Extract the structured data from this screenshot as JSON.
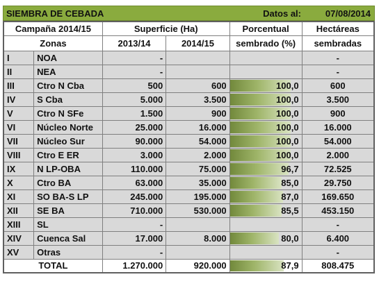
{
  "title": "SIEMBRA DE CEBADA",
  "datos_label": "Datos al:",
  "date": "07/08/2014",
  "header": {
    "campaign": "Campaña 2014/15",
    "surface": "Superficie (Ha)",
    "percent_l1": "Porcentual",
    "percent_l2": "sembrado (%)",
    "hect_l1": "Hectáreas",
    "hect_l2": "sembradas",
    "zones": "Zonas",
    "y1": "2013/14",
    "y2": "2014/15"
  },
  "rows": [
    {
      "num": "I",
      "zone": "NOA",
      "prev": "-",
      "cur": "",
      "pct": "",
      "pct_value": 0,
      "hec": "-"
    },
    {
      "num": "II",
      "zone": "NEA",
      "prev": "-",
      "cur": "",
      "pct": "",
      "pct_value": 0,
      "hec": "-"
    },
    {
      "num": "III",
      "zone": "Ctro N Cba",
      "prev": "500",
      "cur": "600",
      "pct": "100,0",
      "pct_value": 100,
      "hec": "600"
    },
    {
      "num": "IV",
      "zone": "S Cba",
      "prev": "5.000",
      "cur": "3.500",
      "pct": "100,0",
      "pct_value": 100,
      "hec": "3.500"
    },
    {
      "num": "V",
      "zone": "Ctro N SFe",
      "prev": "1.500",
      "cur": "900",
      "pct": "100,0",
      "pct_value": 100,
      "hec": "900"
    },
    {
      "num": "VI",
      "zone": "Núcleo Norte",
      "prev": "25.000",
      "cur": "16.000",
      "pct": "100,0",
      "pct_value": 100,
      "hec": "16.000"
    },
    {
      "num": "VII",
      "zone": "Núcleo Sur",
      "prev": "90.000",
      "cur": "54.000",
      "pct": "100,0",
      "pct_value": 100,
      "hec": "54.000"
    },
    {
      "num": "VIII",
      "zone": "Ctro E ER",
      "prev": "3.000",
      "cur": "2.000",
      "pct": "100,0",
      "pct_value": 100,
      "hec": "2.000"
    },
    {
      "num": "IX",
      "zone": "N LP-OBA",
      "prev": "110.000",
      "cur": "75.000",
      "pct": "96,7",
      "pct_value": 96.7,
      "hec": "72.525"
    },
    {
      "num": "X",
      "zone": "Ctro BA",
      "prev": "63.000",
      "cur": "35.000",
      "pct": "85,0",
      "pct_value": 85,
      "hec": "29.750"
    },
    {
      "num": "XI",
      "zone": "SO BA-S LP",
      "prev": "245.000",
      "cur": "195.000",
      "pct": "87,0",
      "pct_value": 87,
      "hec": "169.650"
    },
    {
      "num": "XII",
      "zone": "SE BA",
      "prev": "710.000",
      "cur": "530.000",
      "pct": "85,5",
      "pct_value": 85.5,
      "hec": "453.150"
    },
    {
      "num": "XIII",
      "zone": "SL",
      "prev": "-",
      "cur": "",
      "pct": "",
      "pct_value": 0,
      "hec": "-"
    },
    {
      "num": "XIV",
      "zone": "Cuenca Sal",
      "prev": "17.000",
      "cur": "8.000",
      "pct": "80,0",
      "pct_value": 80,
      "hec": "6.400"
    },
    {
      "num": "XV",
      "zone": "Otras",
      "prev": "-",
      "cur": "",
      "pct": "",
      "pct_value": 0,
      "hec": "-"
    }
  ],
  "total": {
    "label": "TOTAL",
    "prev": "1.270.000",
    "cur": "920.000",
    "pct": "87,9",
    "pct_value": 87.9,
    "hec": "808.475"
  }
}
